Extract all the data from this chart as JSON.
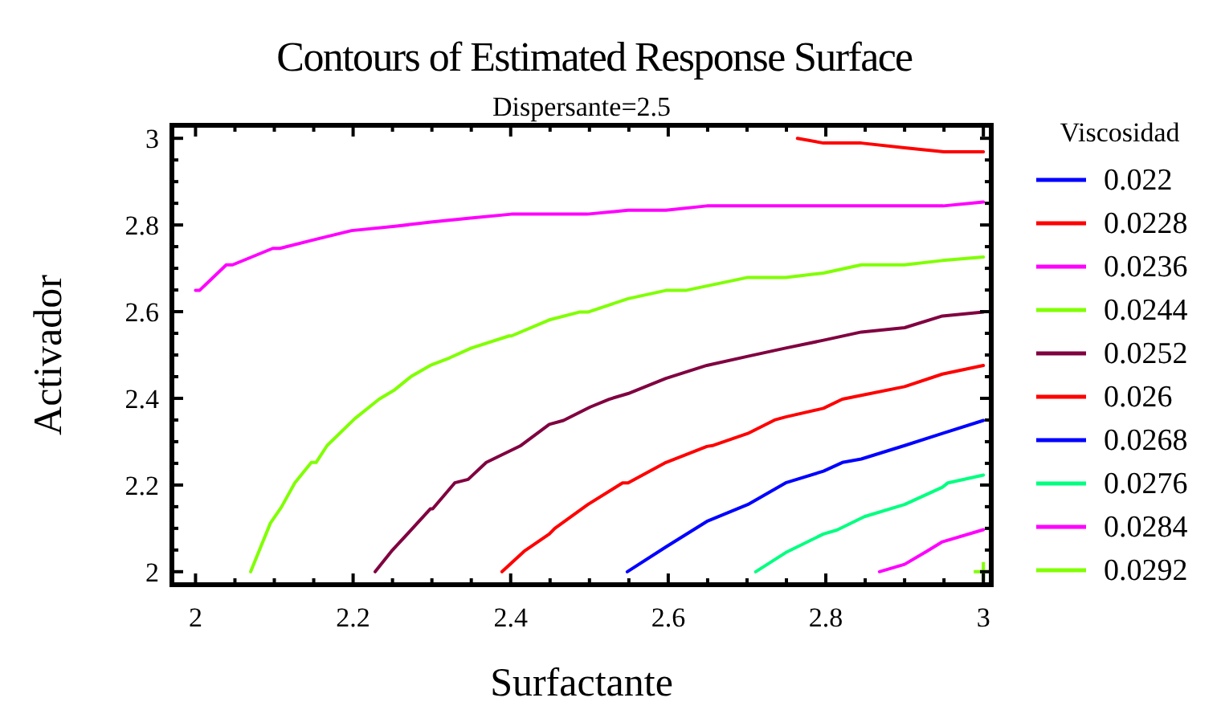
{
  "chart_data": {
    "type": "line",
    "title": "Contours of Estimated Response Surface",
    "subtitle": "Dispersante=2.5",
    "xlabel": "Surfactante",
    "ylabel": "Activador",
    "legend_title": "Viscosidad",
    "legend": "right",
    "marker": "none",
    "grid": false,
    "xlim": [
      1.97,
      3.01
    ],
    "ylim": [
      1.97,
      3.03
    ],
    "xticks": [
      2,
      2.2,
      2.4,
      2.6,
      2.8,
      3
    ],
    "yticks": [
      2,
      2.2,
      2.4,
      2.6,
      2.8,
      3
    ],
    "series": [
      {
        "name": "0.022",
        "color": "#0000ff"
      },
      {
        "name": "0.0228",
        "color": "#ff0000",
        "x": [
          2.764,
          2.797,
          2.845,
          2.9,
          2.95,
          3.0
        ],
        "values": [
          3.0,
          2.989,
          2.989,
          2.978,
          2.969,
          2.969
        ]
      },
      {
        "name": "0.0236",
        "color": "#ff00ff",
        "x": [
          2.0,
          2.005,
          2.039,
          2.047,
          2.098,
          2.107,
          2.153,
          2.198,
          2.253,
          2.301,
          2.349,
          2.401,
          2.497,
          2.549,
          2.597,
          2.649,
          2.949,
          3.0
        ],
        "values": [
          2.649,
          2.649,
          2.708,
          2.708,
          2.746,
          2.746,
          2.767,
          2.787,
          2.797,
          2.807,
          2.816,
          2.825,
          2.825,
          2.834,
          2.834,
          2.844,
          2.844,
          2.853
        ]
      },
      {
        "name": "0.0244",
        "color": "#80ff00",
        "x": [
          2.07,
          2.095,
          2.109,
          2.126,
          2.147,
          2.153,
          2.167,
          2.202,
          2.233,
          2.253,
          2.274,
          2.298,
          2.322,
          2.35,
          2.398,
          2.401,
          2.449,
          2.487,
          2.498,
          2.549,
          2.597,
          2.622,
          2.701,
          2.749,
          2.797,
          2.845,
          2.9,
          2.948,
          3.0
        ],
        "values": [
          2.0,
          2.112,
          2.149,
          2.205,
          2.252,
          2.252,
          2.291,
          2.353,
          2.398,
          2.42,
          2.451,
          2.476,
          2.493,
          2.516,
          2.544,
          2.544,
          2.581,
          2.599,
          2.599,
          2.63,
          2.649,
          2.649,
          2.679,
          2.679,
          2.689,
          2.708,
          2.708,
          2.718,
          2.726
        ]
      },
      {
        "name": "0.0252",
        "color": "#800040",
        "x": [
          2.228,
          2.25,
          2.274,
          2.298,
          2.301,
          2.329,
          2.346,
          2.369,
          2.412,
          2.449,
          2.467,
          2.501,
          2.525,
          2.549,
          2.597,
          2.649,
          2.701,
          2.749,
          2.797,
          2.845,
          2.9,
          2.948,
          3.0
        ],
        "values": [
          2.0,
          2.05,
          2.097,
          2.145,
          2.145,
          2.205,
          2.213,
          2.252,
          2.29,
          2.34,
          2.349,
          2.38,
          2.398,
          2.411,
          2.446,
          2.476,
          2.497,
          2.516,
          2.534,
          2.553,
          2.563,
          2.59,
          2.599
        ]
      },
      {
        "name": "0.026",
        "color": "#ff0000",
        "x": [
          2.389,
          2.417,
          2.449,
          2.456,
          2.498,
          2.542,
          2.549,
          2.597,
          2.649,
          2.656,
          2.701,
          2.735,
          2.749,
          2.797,
          2.821,
          2.845,
          2.9,
          2.948,
          3.0
        ],
        "values": [
          2.0,
          2.047,
          2.087,
          2.1,
          2.155,
          2.205,
          2.205,
          2.252,
          2.289,
          2.291,
          2.319,
          2.35,
          2.357,
          2.377,
          2.398,
          2.407,
          2.427,
          2.456,
          2.476
        ]
      },
      {
        "name": "0.0268",
        "color": "#0000ff",
        "x": [
          2.548,
          2.597,
          2.649,
          2.701,
          2.749,
          2.797,
          2.821,
          2.845,
          2.9,
          2.948,
          3.0
        ],
        "values": [
          2.0,
          2.057,
          2.116,
          2.155,
          2.205,
          2.232,
          2.252,
          2.26,
          2.291,
          2.319,
          2.349
        ]
      },
      {
        "name": "0.0276",
        "color": "#00ff80",
        "x": [
          2.711,
          2.749,
          2.797,
          2.814,
          2.849,
          2.9,
          2.948,
          2.955,
          3.0
        ],
        "values": [
          2.0,
          2.044,
          2.087,
          2.096,
          2.127,
          2.155,
          2.195,
          2.205,
          2.223
        ]
      },
      {
        "name": "0.0284",
        "color": "#ff00ff",
        "x": [
          2.868,
          2.9,
          2.928,
          2.948,
          3.0
        ],
        "values": [
          2.0,
          2.017,
          2.047,
          2.069,
          2.097
        ]
      },
      {
        "name": "0.0292",
        "color": "#80ff00",
        "type": "scatter",
        "marker": "cross",
        "x": [
          3.0
        ],
        "values": [
          2.0
        ]
      }
    ]
  }
}
